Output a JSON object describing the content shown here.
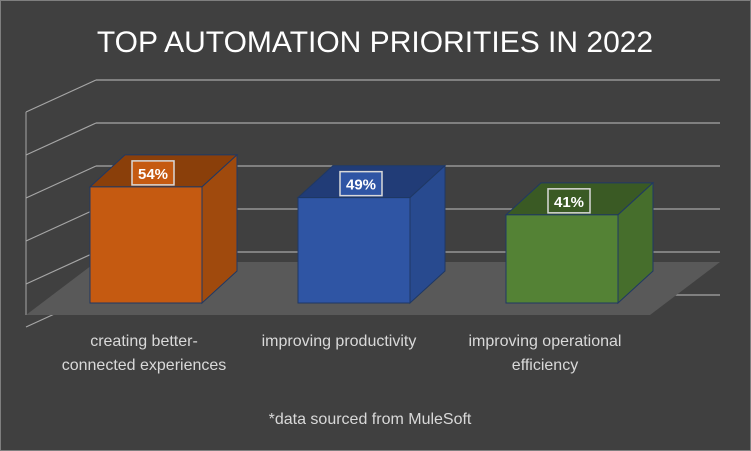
{
  "chart_data": {
    "type": "bar",
    "style": "3d-column",
    "title": "TOP AUTOMATION PRIORITIES IN 2022",
    "categories": [
      "creating better-connected experiences",
      "improving productivity",
      "improving operational efficiency"
    ],
    "category_label_lines": [
      [
        "creating better-",
        "connected experiences"
      ],
      [
        "improving productivity"
      ],
      [
        "improving operational",
        "efficiency"
      ]
    ],
    "values": [
      54,
      49,
      41
    ],
    "data_labels": [
      "54%",
      "49%",
      "41%"
    ],
    "ylim": [
      0,
      100
    ],
    "xlabel": "",
    "ylabel": "",
    "grid": true,
    "legend": "none",
    "footnote": "*data sourced from MuleSoft",
    "colors": {
      "background": "#404040",
      "floor": "#595959",
      "gridline": "#a6a6a6",
      "text": "#ffffff",
      "label_text": "#d9d9d9",
      "bars": [
        {
          "front": "#c55a11",
          "side": "#a04a0d",
          "top": "#8a3f0a",
          "label_bg": "#c55a11"
        },
        {
          "front": "#2f55a4",
          "side": "#284a8f",
          "top": "#213c77",
          "label_bg": "#2f55a4"
        },
        {
          "front": "#548235",
          "side": "#466e2c",
          "top": "#3a5a24",
          "label_bg": "#3a5a24"
        }
      ]
    }
  }
}
